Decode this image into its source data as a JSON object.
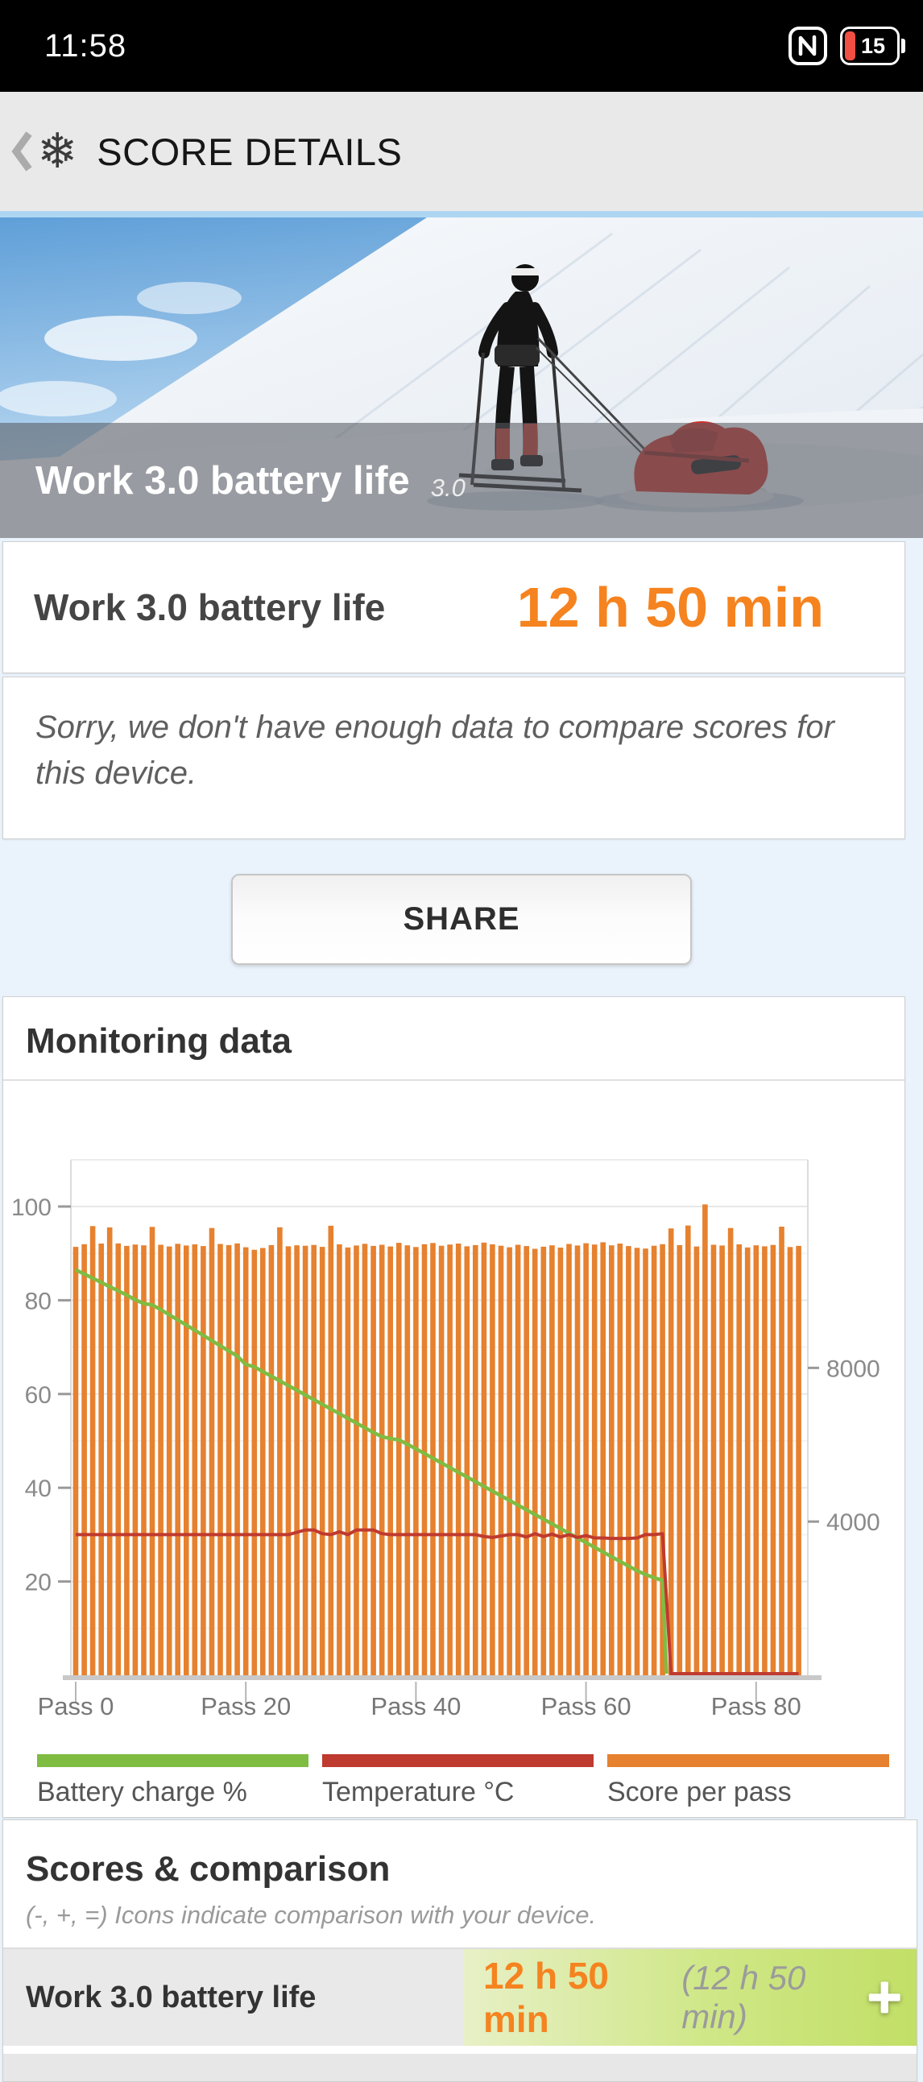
{
  "status_bar": {
    "time": "11:58",
    "battery_percent": "15"
  },
  "header": {
    "title": "SCORE DETAILS"
  },
  "hero": {
    "title": "Work 3.0 battery life",
    "version": "3.0"
  },
  "result": {
    "label": "Work 3.0 battery life",
    "value": "12 h 50 min"
  },
  "notice": {
    "text": "Sorry, we don't have enough data to compare scores for this device."
  },
  "share": {
    "label": "SHARE"
  },
  "monitoring": {
    "title": "Monitoring data"
  },
  "chart_data": {
    "type": "bar",
    "title": "Monitoring data",
    "x_tick_labels": [
      "Pass 0",
      "Pass 20",
      "Pass 40",
      "Pass 60",
      "Pass 80"
    ],
    "passes": 86,
    "left_axis": {
      "ticks": [
        20,
        40,
        60,
        80,
        100
      ],
      "range": [
        0,
        110
      ]
    },
    "right_axis": {
      "ticks": [
        4000,
        8000
      ],
      "range": [
        0,
        13420
      ],
      "units_per_left_unit": 122
    },
    "grid": true,
    "legend_position": "bottom",
    "series": [
      {
        "name": "Battery charge %",
        "type": "line",
        "axis": "left",
        "color": "#7fbc42",
        "values": [
          86.5,
          85.6,
          84.7,
          83.8,
          82.9,
          82,
          81.1,
          80.1,
          79.3,
          79,
          78,
          76.9,
          75.8,
          74.7,
          73.6,
          72.5,
          71.4,
          70.3,
          69.2,
          68.1,
          66.3,
          65.8,
          64.8,
          63.8,
          62.8,
          61.8,
          60.8,
          59.8,
          58.8,
          57.8,
          56.8,
          55.8,
          54.8,
          53.8,
          52.8,
          51.8,
          50.9,
          50.5,
          50.2,
          49.3,
          48.3,
          47.3,
          46.3,
          45.3,
          44.3,
          43.3,
          42.3,
          41.3,
          40.3,
          39.3,
          38.3,
          37.3,
          36.3,
          35.3,
          34.3,
          33.3,
          32.3,
          31.3,
          30.3,
          29.3,
          28.3,
          27.3,
          26.3,
          25.3,
          24.3,
          23.3,
          22.3,
          21.5,
          20.8,
          20.3,
          null,
          null,
          null,
          null,
          null,
          null,
          null,
          null,
          null,
          null,
          null,
          null,
          null,
          null,
          null,
          null
        ]
      },
      {
        "name": "Temperature °C",
        "type": "line",
        "axis": "left",
        "color": "#bf3a2f",
        "values": [
          30,
          30,
          30,
          30,
          30,
          30,
          30,
          30,
          30,
          30,
          30,
          30,
          30,
          30,
          30,
          30,
          30,
          30,
          30,
          30,
          30,
          30,
          30,
          30,
          30,
          30,
          30.5,
          31,
          31,
          30.2,
          30,
          30.6,
          30,
          31,
          31,
          31,
          30.2,
          30,
          30,
          30,
          30,
          30,
          30,
          30,
          30,
          30,
          30,
          30,
          29.6,
          29.4,
          29.7,
          30,
          30,
          29.5,
          30.2,
          29.6,
          30.1,
          29.5,
          30,
          29.4,
          29.8,
          29.3,
          29.3,
          29.2,
          29.2,
          29.2,
          29.3,
          30,
          30,
          30.2,
          0,
          0,
          0,
          0,
          0,
          0,
          0,
          0,
          0,
          0,
          0,
          0,
          0,
          0,
          0,
          0
        ]
      },
      {
        "name": "Score per pass",
        "type": "bar",
        "axis": "right",
        "color": "#e6812f",
        "values": [
          11150,
          11220,
          11690,
          11235,
          11655,
          11240,
          11175,
          11210,
          11190,
          11670,
          11205,
          11160,
          11230,
          11185,
          11215,
          11170,
          11640,
          11225,
          11195,
          11240,
          11140,
          11075,
          11120,
          11195,
          11660,
          11165,
          11190,
          11180,
          11200,
          11150,
          11700,
          11215,
          11135,
          11185,
          11230,
          11175,
          11205,
          11160,
          11255,
          11190,
          11145,
          11220,
          11250,
          11180,
          11210,
          11235,
          11165,
          11195,
          11260,
          11215,
          11180,
          11140,
          11205,
          11170,
          11100,
          11155,
          11190,
          11130,
          11225,
          11185,
          11245,
          11210,
          11270,
          11190,
          11235,
          11170,
          11125,
          11105,
          11180,
          11220,
          11630,
          11195,
          11705,
          11160,
          12255,
          11205,
          11185,
          11640,
          11215,
          11135,
          11190,
          11165,
          11200,
          11675,
          11145,
          11175
        ]
      }
    ]
  },
  "scores": {
    "title": "Scores & comparison",
    "subtitle": "(-, +, =) Icons indicate comparison with your device.",
    "rows": [
      {
        "label": "Work 3.0 battery life",
        "value": "12 h 50 min",
        "value_detail": "(12 h 50 min)"
      }
    ]
  },
  "colors": {
    "accent_orange": "#f5831f",
    "bar_orange": "#e6812f",
    "battery_green": "#7fbc42",
    "temp_red": "#bf3a2f",
    "page_bg": "#eaf3fc",
    "header_bg": "#e9e9e9",
    "row_green_start": "#e7f0c6",
    "row_green_end": "#c2df66"
  }
}
